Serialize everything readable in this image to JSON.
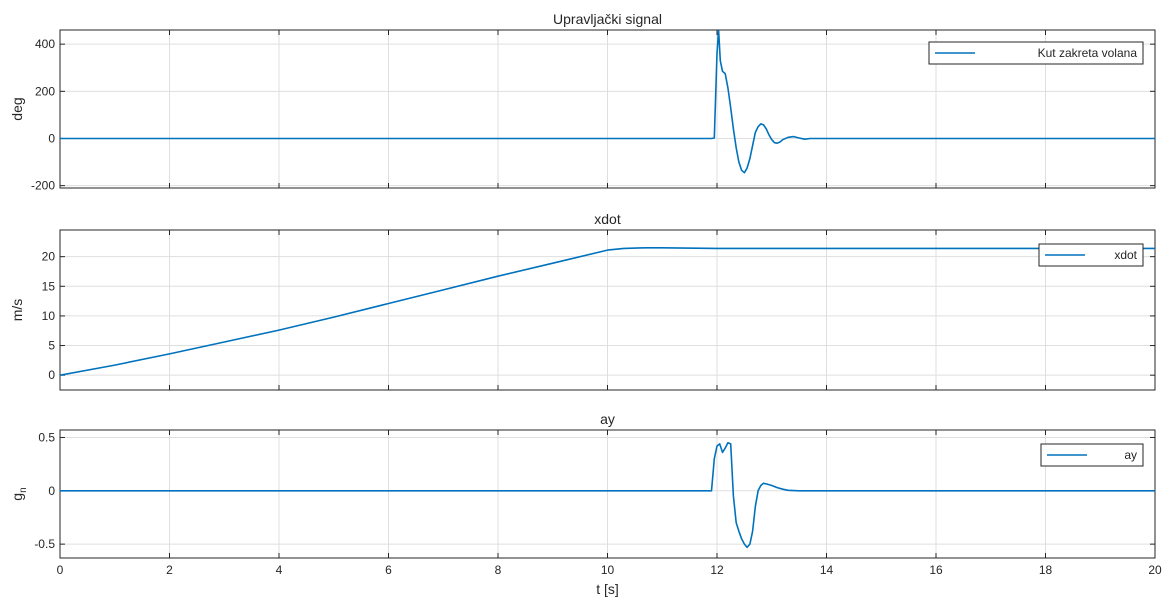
{
  "chart_data": [
    {
      "type": "line",
      "title": "Upravljački signal",
      "xlabel": "",
      "ylabel": "deg",
      "xlim": [
        0,
        20
      ],
      "ylim": [
        -210,
        460
      ],
      "xticks": [
        0,
        2,
        4,
        6,
        8,
        10,
        12,
        14,
        16,
        18,
        20
      ],
      "yticks": [
        -200,
        0,
        200,
        400
      ],
      "xtick_labels_visible": false,
      "grid": true,
      "legend_position": "top-right",
      "color": "#0072BD",
      "series": [
        {
          "name": "Kut zakreta volana",
          "x": [
            0,
            11.9,
            11.95,
            12.0,
            12.03,
            12.06,
            12.1,
            12.15,
            12.2,
            12.25,
            12.3,
            12.35,
            12.4,
            12.45,
            12.5,
            12.55,
            12.6,
            12.65,
            12.7,
            12.75,
            12.8,
            12.85,
            12.9,
            12.95,
            13.0,
            13.05,
            13.1,
            13.15,
            13.2,
            13.3,
            13.4,
            13.5,
            13.6,
            13.7,
            14,
            20
          ],
          "y": [
            0,
            0,
            2,
            360,
            460,
            330,
            285,
            275,
            215,
            130,
            40,
            -40,
            -100,
            -135,
            -145,
            -125,
            -85,
            -30,
            25,
            50,
            62,
            58,
            40,
            15,
            -5,
            -18,
            -20,
            -15,
            -5,
            5,
            8,
            2,
            -3,
            0,
            0,
            0
          ]
        }
      ]
    },
    {
      "type": "line",
      "title": "xdot",
      "xlabel": "",
      "ylabel": "m/s",
      "xlim": [
        0,
        20
      ],
      "ylim": [
        -2.5,
        24.5
      ],
      "xticks": [
        0,
        2,
        4,
        6,
        8,
        10,
        12,
        14,
        16,
        18,
        20
      ],
      "yticks": [
        0,
        5,
        10,
        15,
        20
      ],
      "xtick_labels_visible": false,
      "grid": true,
      "legend_position": "right",
      "color": "#0072BD",
      "series": [
        {
          "name": "xdot",
          "x": [
            0,
            1,
            2,
            3,
            4,
            5,
            6,
            7,
            8,
            9,
            10,
            10.3,
            10.7,
            11,
            12,
            14,
            16,
            18,
            20
          ],
          "y": [
            0,
            1.7,
            3.6,
            5.6,
            7.6,
            9.8,
            12.1,
            14.4,
            16.7,
            18.9,
            21.1,
            21.4,
            21.5,
            21.5,
            21.4,
            21.4,
            21.4,
            21.4,
            21.4
          ]
        }
      ]
    },
    {
      "type": "line",
      "title": "ay",
      "xlabel": "t [s]",
      "ylabel": "g_n",
      "ylabel_main": "g",
      "ylabel_sub": "n",
      "xlim": [
        0,
        20
      ],
      "ylim": [
        -0.63,
        0.57
      ],
      "xticks": [
        0,
        2,
        4,
        6,
        8,
        10,
        12,
        14,
        16,
        18,
        20
      ],
      "yticks": [
        -0.5,
        0,
        0.5
      ],
      "ytick_labels": [
        "-0.5",
        "0",
        "0.5"
      ],
      "xtick_labels_visible": true,
      "grid": true,
      "legend_position": "top-right",
      "color": "#0072BD",
      "series": [
        {
          "name": "ay",
          "x": [
            0,
            11.9,
            11.95,
            12.0,
            12.05,
            12.1,
            12.15,
            12.2,
            12.25,
            12.3,
            12.35,
            12.4,
            12.45,
            12.5,
            12.55,
            12.6,
            12.65,
            12.7,
            12.75,
            12.8,
            12.85,
            12.9,
            13.0,
            13.1,
            13.2,
            13.3,
            13.5,
            14,
            20
          ],
          "y": [
            0,
            0,
            0.3,
            0.42,
            0.44,
            0.36,
            0.4,
            0.45,
            0.44,
            -0.05,
            -0.3,
            -0.38,
            -0.45,
            -0.5,
            -0.53,
            -0.5,
            -0.38,
            -0.15,
            0.0,
            0.05,
            0.07,
            0.065,
            0.05,
            0.03,
            0.015,
            0.005,
            0.0,
            0.0,
            0.0
          ]
        }
      ]
    }
  ]
}
